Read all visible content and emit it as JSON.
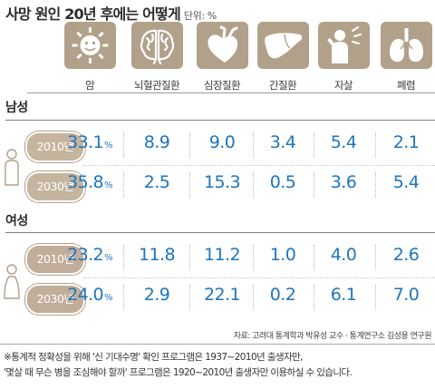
{
  "header": {
    "title": "사망 원인 20년 후에는 어떻게",
    "unit": "단위: %"
  },
  "colors": {
    "value_text": "#1f75bc",
    "icon_bg": "#b2a18a",
    "pill_male": "#c5b59e",
    "pill_female": "#c2ad9b"
  },
  "icons": [
    "sun-icon",
    "brain-icon",
    "heart-icon",
    "liver-icon",
    "person-distress-icon",
    "lungs-icon"
  ],
  "chart_data": {
    "type": "table",
    "categories": [
      "암",
      "뇌혈관질환",
      "심장질환",
      "간질환",
      "자살",
      "폐렴"
    ],
    "value_suffix": "%",
    "groups": [
      {
        "name": "남성",
        "rows": [
          {
            "year": "2010년",
            "values": [
              33.1,
              8.9,
              9.0,
              3.4,
              5.4,
              2.1
            ]
          },
          {
            "year": "2030년",
            "values": [
              35.8,
              2.5,
              15.3,
              0.5,
              3.6,
              5.4
            ]
          }
        ]
      },
      {
        "name": "여성",
        "rows": [
          {
            "year": "2010년",
            "values": [
              23.2,
              11.8,
              11.2,
              1.0,
              4.0,
              2.6
            ]
          },
          {
            "year": "2030년",
            "values": [
              24.0,
              2.9,
              22.1,
              0.2,
              6.1,
              7.0
            ]
          }
        ]
      }
    ]
  },
  "source": "자료: 고려대 통계학과 박유성 교수 · 통계연구소 김성용 연구원",
  "notes": [
    "※통계적 정확성을 위해 '신 기대수명' 확인 프로그램은 1937~2010년 출생자만,",
    "'몇살 때 무슨 병을 조심해야 할까' 프로그램은 1920~2010년 출생자만 이용하실 수 있습니다."
  ]
}
